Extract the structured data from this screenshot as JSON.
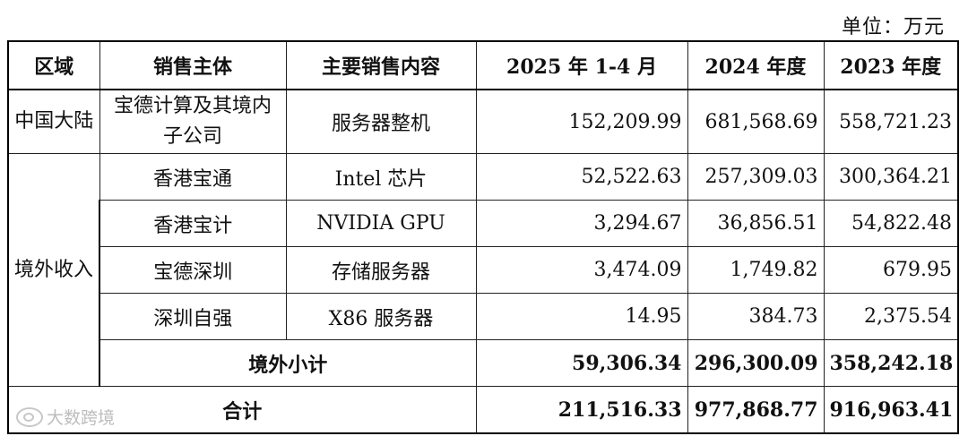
{
  "unit_label": "单位：万元",
  "columns": [
    "区域",
    "销售主体",
    "主要销售内容",
    "2025 年 1-4 月",
    "2024 年度",
    "2023 年度"
  ],
  "mainland": {
    "region": "中国大陆",
    "entity": "宝德计算及其境内子公司",
    "product": "服务器整机",
    "values": [
      "152,209.99",
      "681,568.69",
      "558,721.23"
    ]
  },
  "overseas": {
    "region": "境外收入",
    "rows": [
      {
        "entity": "香港宝通",
        "product": "Intel 芯片",
        "values": [
          "52,522.63",
          "257,309.03",
          "300,364.21"
        ]
      },
      {
        "entity": "香港宝计",
        "product": "NVIDIA GPU",
        "values": [
          "3,294.67",
          "36,856.51",
          "54,822.48"
        ]
      },
      {
        "entity": "宝德深圳",
        "product": "存储服务器",
        "values": [
          "3,474.09",
          "1,749.82",
          "679.95"
        ]
      },
      {
        "entity": "深圳自强",
        "product": "X86 服务器",
        "values": [
          "14.95",
          "384.73",
          "2,375.54"
        ]
      }
    ],
    "subtotal_label": "境外小计",
    "subtotal_values": [
      "59,306.34",
      "296,300.09",
      "358,242.18"
    ]
  },
  "total": {
    "label": "合计",
    "values": [
      "211,516.33",
      "977,868.77",
      "916,963.41"
    ]
  },
  "watermark": "大数跨境"
}
